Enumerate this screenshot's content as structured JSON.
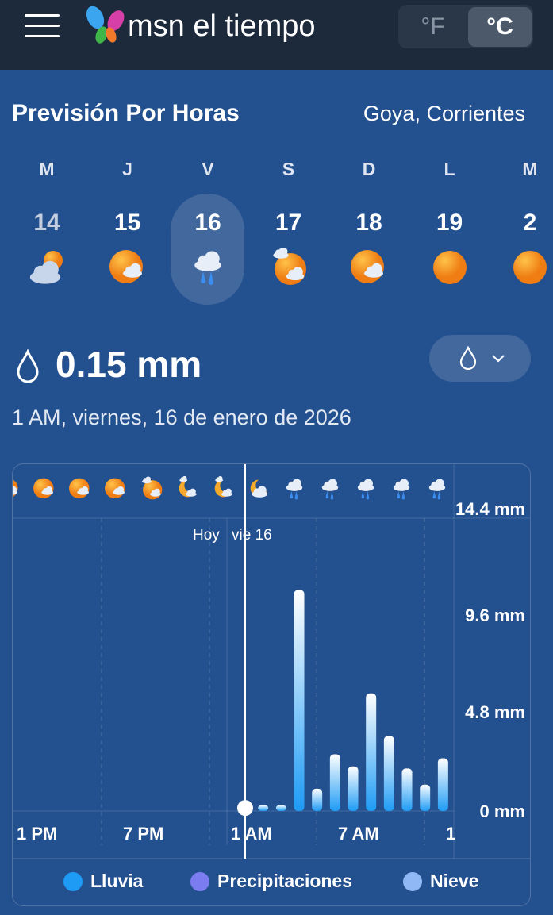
{
  "header": {
    "brand": "msn el tiempo",
    "unit_f": "°F",
    "unit_c": "°C",
    "selected_unit": "°C"
  },
  "page": {
    "title": "Previsión Por Horas",
    "location": "Goya, Corrientes"
  },
  "days": [
    {
      "letter": "M",
      "num": "14",
      "icon": "cloudy-sun",
      "dim": true
    },
    {
      "letter": "J",
      "num": "15",
      "icon": "sun-cloud"
    },
    {
      "letter": "V",
      "num": "16",
      "icon": "rain",
      "selected": true
    },
    {
      "letter": "S",
      "num": "17",
      "icon": "sun-clouds"
    },
    {
      "letter": "D",
      "num": "18",
      "icon": "sun-cloud"
    },
    {
      "letter": "L",
      "num": "19",
      "icon": "sun"
    },
    {
      "letter": "M",
      "num": "2",
      "icon": "sun"
    }
  ],
  "summary": {
    "amount": "0.15 mm",
    "date": "1 AM, viernes, 16 de enero de 2026"
  },
  "chart_data": {
    "type": "bar",
    "hourly_icons": [
      "sun-cloud",
      "sun-cloud",
      "sun-cloud",
      "sun-cloud",
      "sun-clouds",
      "moon-cloud",
      "moon-cloud",
      "moon-cloud-big",
      "rain",
      "rain",
      "rain",
      "rain",
      "rain"
    ],
    "x_tick_labels": [
      "1 PM",
      "7 PM",
      "1 AM",
      "7 AM",
      "1"
    ],
    "day_labels": [
      "Hoy",
      "vie 16"
    ],
    "y_tick_labels": [
      "14.4 mm",
      "9.6 mm",
      "4.8 mm",
      "0 mm"
    ],
    "ylim": [
      0,
      14.4
    ],
    "selected": {
      "hour": "1 AM",
      "value": 0.15
    },
    "hours": [
      "2 AM",
      "3 AM",
      "4 AM",
      "5 AM",
      "6 AM",
      "7 AM",
      "8 AM",
      "9 AM",
      "10 AM",
      "11 AM",
      "12 PM"
    ],
    "values": [
      0.3,
      0.3,
      10.9,
      1.1,
      2.8,
      2.2,
      5.8,
      3.7,
      2.1,
      1.3,
      2.6
    ],
    "colors": {
      "bar_top": "#ffffff",
      "bar_bottom": "#1e9bf5"
    }
  },
  "legend": [
    {
      "label": "Lluvia",
      "color": "#1e9bf5"
    },
    {
      "label": "Precipitaciones",
      "color": "#7b7cf0"
    },
    {
      "label": "Nieve",
      "color": "#8fb8f5"
    }
  ]
}
